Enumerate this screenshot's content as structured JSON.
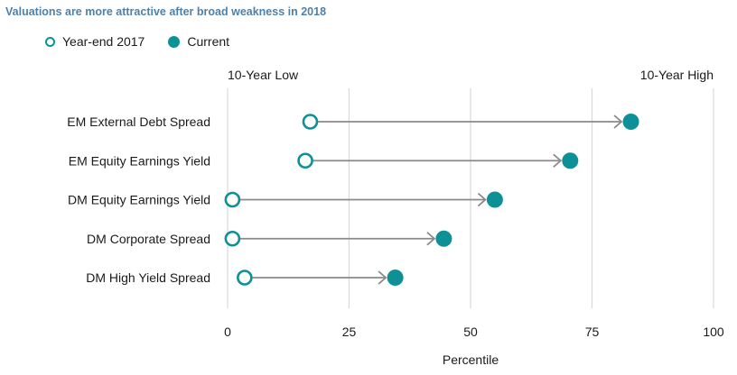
{
  "chart_data": {
    "type": "dot-arrow",
    "title": "Valuations are more attractive after broad weakness in 2018",
    "xlabel": "Percentile",
    "xlim": [
      0,
      100
    ],
    "xticks": [
      0,
      25,
      50,
      75,
      100
    ],
    "grid": true,
    "legend_position": "top-left",
    "endpoint_labels": {
      "low": "10-Year Low",
      "high": "10-Year High"
    },
    "categories": [
      "EM External Debt Spread",
      "EM Equity Earnings Yield",
      "DM Equity Earnings Yield",
      "DM Corporate Spread",
      "DM High Yield Spread"
    ],
    "series": [
      {
        "name": "Year-end 2017",
        "marker": "open-circle",
        "values": [
          17,
          16,
          1,
          1,
          3.5
        ]
      },
      {
        "name": "Current",
        "marker": "filled-circle",
        "values": [
          83,
          70.5,
          55,
          44.5,
          34.5
        ]
      }
    ],
    "colors": {
      "marker": "#0e9196",
      "arrow": "#8a8a8a",
      "grid": "#d9d9d9",
      "title": "#4f81a8"
    }
  }
}
